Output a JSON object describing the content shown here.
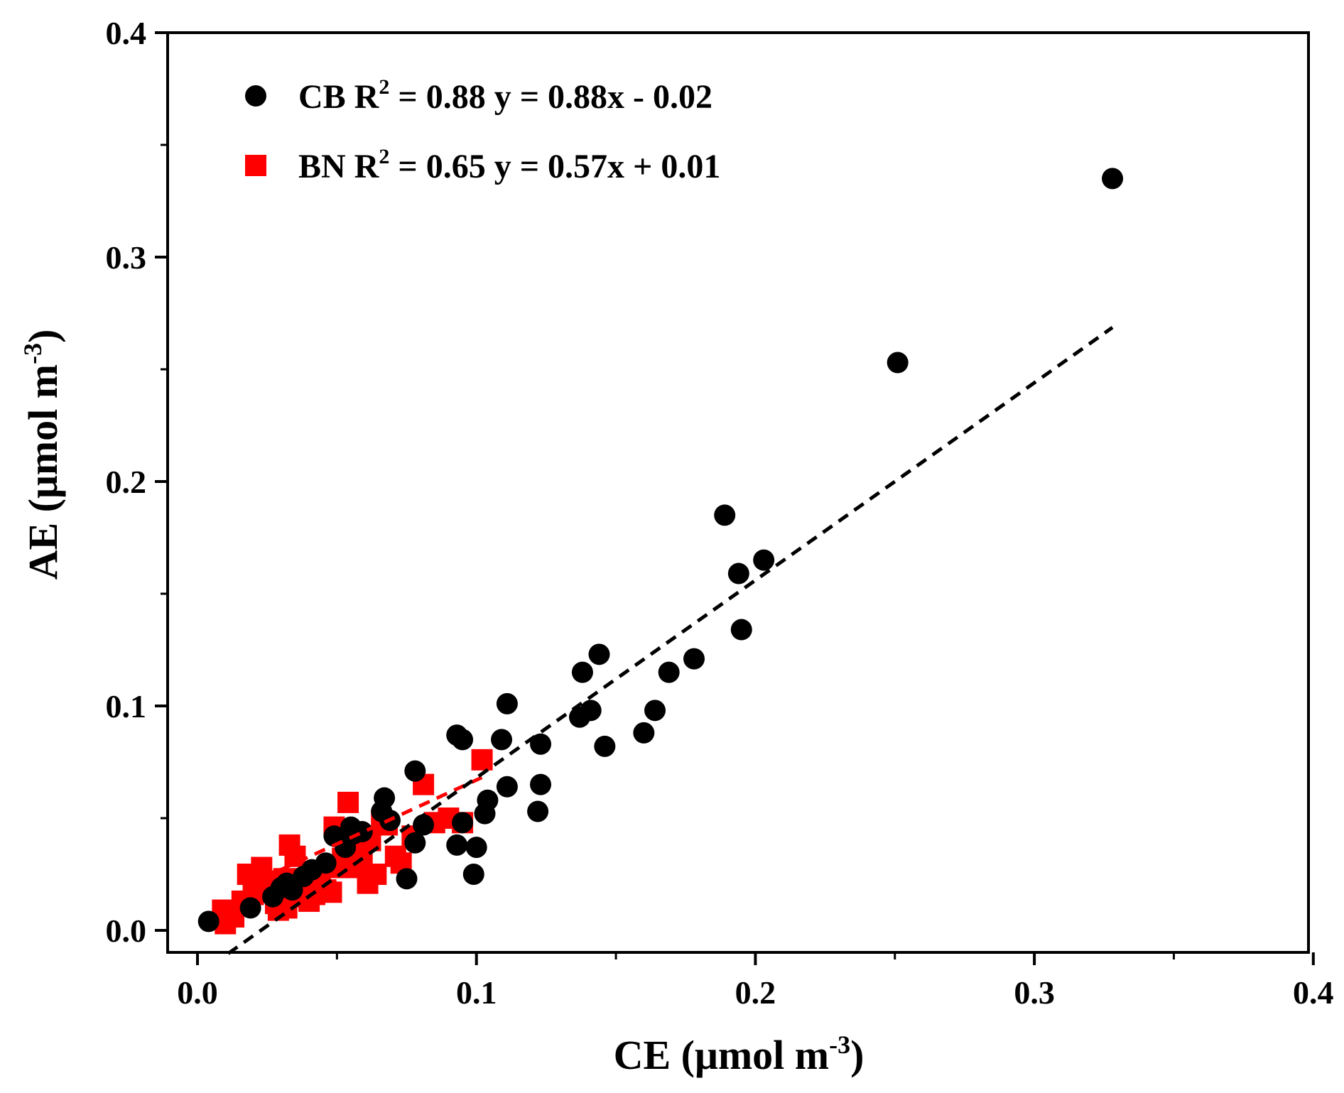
{
  "chart_data": {
    "type": "scatter",
    "xlabel": "CE (μmol m",
    "xlabel_sup": "-3",
    "xlabel_close": ")",
    "ylabel": "AE (μmol m",
    "ylabel_sup": "-3",
    "ylabel_close": ")",
    "xlim": [
      -0.01,
      0.4
    ],
    "ylim": [
      -0.01,
      0.4
    ],
    "x_ticks": [
      {
        "value": 0.0,
        "label": "0.0"
      },
      {
        "value": 0.1,
        "label": "0.1"
      },
      {
        "value": 0.2,
        "label": "0.2"
      },
      {
        "value": 0.3,
        "label": "0.3"
      },
      {
        "value": 0.4,
        "label": "0.4"
      }
    ],
    "y_ticks": [
      {
        "value": 0.0,
        "label": "0.0"
      },
      {
        "value": 0.1,
        "label": "0.1"
      },
      {
        "value": 0.2,
        "label": "0.2"
      },
      {
        "value": 0.3,
        "label": "0.3"
      },
      {
        "value": 0.4,
        "label": "0.4"
      }
    ],
    "minor_ticks": [
      0.05,
      0.15,
      0.25,
      0.35
    ],
    "grid": false,
    "legend_position": "top-left",
    "series": [
      {
        "name": "CB",
        "legend_label": "CB R",
        "legend_sup": "2",
        "legend_rest": " = 0.88 y = 0.88x - 0.02",
        "color": "#000000",
        "marker": "circle",
        "fit": {
          "slope": 0.88,
          "intercept": -0.02,
          "x_range": [
            0.011,
            0.328
          ]
        },
        "points": [
          [
            0.004,
            0.004
          ],
          [
            0.019,
            0.01
          ],
          [
            0.027,
            0.015
          ],
          [
            0.03,
            0.019
          ],
          [
            0.032,
            0.021
          ],
          [
            0.034,
            0.018
          ],
          [
            0.038,
            0.024
          ],
          [
            0.041,
            0.027
          ],
          [
            0.046,
            0.03
          ],
          [
            0.049,
            0.042
          ],
          [
            0.053,
            0.037
          ],
          [
            0.055,
            0.046
          ],
          [
            0.056,
            0.043
          ],
          [
            0.059,
            0.044
          ],
          [
            0.066,
            0.053
          ],
          [
            0.067,
            0.059
          ],
          [
            0.069,
            0.049
          ],
          [
            0.075,
            0.023
          ],
          [
            0.078,
            0.071
          ],
          [
            0.078,
            0.039
          ],
          [
            0.081,
            0.047
          ],
          [
            0.093,
            0.038
          ],
          [
            0.093,
            0.087
          ],
          [
            0.095,
            0.048
          ],
          [
            0.095,
            0.085
          ],
          [
            0.099,
            0.025
          ],
          [
            0.1,
            0.037
          ],
          [
            0.103,
            0.052
          ],
          [
            0.104,
            0.058
          ],
          [
            0.109,
            0.085
          ],
          [
            0.111,
            0.101
          ],
          [
            0.111,
            0.064
          ],
          [
            0.122,
            0.053
          ],
          [
            0.123,
            0.083
          ],
          [
            0.123,
            0.065
          ],
          [
            0.137,
            0.095
          ],
          [
            0.138,
            0.115
          ],
          [
            0.141,
            0.098
          ],
          [
            0.144,
            0.123
          ],
          [
            0.146,
            0.082
          ],
          [
            0.16,
            0.088
          ],
          [
            0.164,
            0.098
          ],
          [
            0.169,
            0.115
          ],
          [
            0.178,
            0.121
          ],
          [
            0.189,
            0.185
          ],
          [
            0.194,
            0.159
          ],
          [
            0.195,
            0.134
          ],
          [
            0.203,
            0.165
          ],
          [
            0.251,
            0.253
          ],
          [
            0.328,
            0.335
          ]
        ]
      },
      {
        "name": "BN",
        "legend_label": "BN R",
        "legend_sup": "2",
        "legend_rest": " = 0.65 y = 0.57x + 0.01",
        "color": "#ff0000",
        "marker": "square",
        "fit": {
          "slope": 0.57,
          "intercept": 0.01,
          "x_range": [
            0.017,
            0.103
          ]
        },
        "points": [
          [
            0.009,
            0.009
          ],
          [
            0.01,
            0.003
          ],
          [
            0.013,
            0.006
          ],
          [
            0.016,
            0.013
          ],
          [
            0.018,
            0.025
          ],
          [
            0.02,
            0.016
          ],
          [
            0.022,
            0.02
          ],
          [
            0.023,
            0.028
          ],
          [
            0.025,
            0.022
          ],
          [
            0.026,
            0.018
          ],
          [
            0.028,
            0.012
          ],
          [
            0.029,
            0.009
          ],
          [
            0.031,
            0.023
          ],
          [
            0.032,
            0.01
          ],
          [
            0.033,
            0.038
          ],
          [
            0.034,
            0.015
          ],
          [
            0.035,
            0.033
          ],
          [
            0.037,
            0.018
          ],
          [
            0.038,
            0.023
          ],
          [
            0.04,
            0.013
          ],
          [
            0.042,
            0.016
          ],
          [
            0.044,
            0.022
          ],
          [
            0.046,
            0.018
          ],
          [
            0.048,
            0.017
          ],
          [
            0.049,
            0.046
          ],
          [
            0.05,
            0.028
          ],
          [
            0.052,
            0.032
          ],
          [
            0.054,
            0.057
          ],
          [
            0.056,
            0.04
          ],
          [
            0.057,
            0.028
          ],
          [
            0.059,
            0.034
          ],
          [
            0.061,
            0.021
          ],
          [
            0.062,
            0.04
          ],
          [
            0.064,
            0.025
          ],
          [
            0.066,
            0.049
          ],
          [
            0.068,
            0.047
          ],
          [
            0.071,
            0.033
          ],
          [
            0.073,
            0.03
          ],
          [
            0.077,
            0.042
          ],
          [
            0.081,
            0.065
          ],
          [
            0.085,
            0.048
          ],
          [
            0.09,
            0.05
          ],
          [
            0.095,
            0.048
          ],
          [
            0.102,
            0.076
          ]
        ]
      }
    ]
  }
}
